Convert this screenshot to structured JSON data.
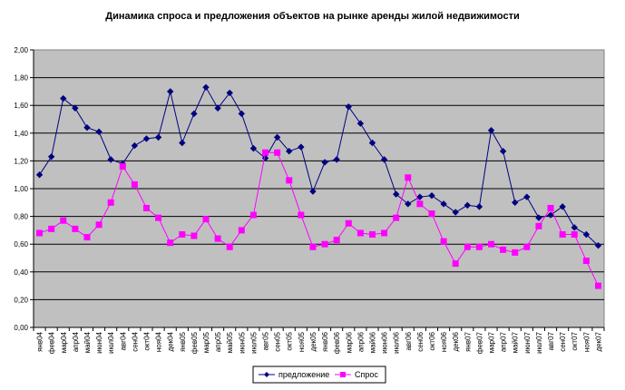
{
  "chart_data": {
    "type": "line",
    "title": "Динамика спроса и предложения объектов на рынке аренды жилой недвижимости",
    "xlabel": "",
    "ylabel": "",
    "ylim": [
      0,
      2
    ],
    "yticks": [
      "0,00",
      "0,20",
      "0,40",
      "0,60",
      "0,80",
      "1,00",
      "1,20",
      "1,40",
      "1,60",
      "1,80",
      "2,00"
    ],
    "grid": true,
    "legend_position": "bottom",
    "background": "#c0c0c0",
    "categories": [
      "янв04",
      "фев04",
      "мар04",
      "апр04",
      "май04",
      "июн04",
      "июл04",
      "авг04",
      "сен04",
      "окт04",
      "ноя04",
      "дек04",
      "янв05",
      "фев05",
      "мар05",
      "апр05",
      "май05",
      "июн05",
      "июл05",
      "авг05",
      "сен05",
      "окт05",
      "ноя05",
      "дек05",
      "янв06",
      "фев06",
      "мар06",
      "апр06",
      "май06",
      "июн06",
      "июл06",
      "авг06",
      "сен06",
      "окт06",
      "ноя06",
      "дек06",
      "янв07",
      "фев07",
      "мар07",
      "апр07",
      "май07",
      "июн07",
      "июл07",
      "авг07",
      "сен07",
      "окт07",
      "ноя07",
      "дек07"
    ],
    "series": [
      {
        "name": "предложение",
        "color": "#000080",
        "marker": "diamond",
        "values": [
          1.1,
          1.23,
          1.65,
          1.58,
          1.44,
          1.41,
          1.21,
          1.18,
          1.31,
          1.36,
          1.37,
          1.7,
          1.33,
          1.54,
          1.73,
          1.58,
          1.69,
          1.54,
          1.29,
          1.22,
          1.37,
          1.27,
          1.3,
          0.98,
          1.19,
          1.21,
          1.59,
          1.47,
          1.33,
          1.21,
          0.96,
          0.89,
          0.94,
          0.95,
          0.89,
          0.83,
          0.88,
          0.87,
          1.42,
          1.27,
          0.9,
          0.94,
          0.79,
          0.81,
          0.87,
          0.72,
          0.67,
          0.59
        ]
      },
      {
        "name": "Спрос",
        "color": "#ff00ff",
        "marker": "square",
        "values": [
          0.68,
          0.71,
          0.77,
          0.71,
          0.65,
          0.74,
          0.9,
          1.16,
          1.03,
          0.86,
          0.79,
          0.61,
          0.67,
          0.66,
          0.78,
          0.64,
          0.58,
          0.7,
          0.81,
          1.26,
          1.26,
          1.06,
          0.81,
          0.58,
          0.6,
          0.63,
          0.75,
          0.68,
          0.67,
          0.68,
          0.79,
          1.08,
          0.89,
          0.82,
          0.62,
          0.46,
          0.58,
          0.58,
          0.6,
          0.56,
          0.54,
          0.58,
          0.73,
          0.86,
          0.67,
          0.67,
          0.48,
          0.3
        ]
      }
    ]
  }
}
